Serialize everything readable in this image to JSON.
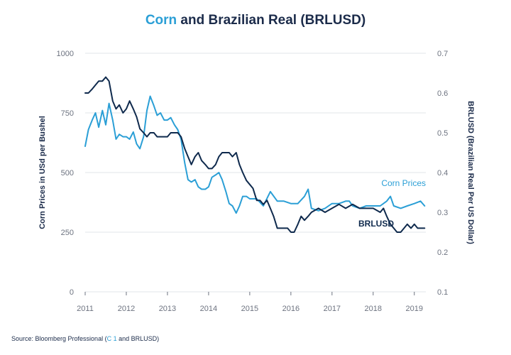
{
  "title": {
    "accent": "Corn",
    "rest": " and Brazilian Real (BRLUSD)"
  },
  "source": {
    "prefix": "Source: Bloomberg Professional (",
    "accent": "C 1",
    "suffix": " and BRLUSD)"
  },
  "colors": {
    "corn": "#2b9fd6",
    "brl": "#0f2a4d",
    "grid": "#e2e4e8",
    "text": "#1b2b4a",
    "tick": "#6d7380"
  },
  "chart_data": {
    "type": "line",
    "title": "Corn and Brazilian Real (BRLUSD)",
    "xlabel": "",
    "ylabel_left": "Corn Prices in USd per Bushel",
    "ylabel_right": "BRLUSD (Brazilian Real Per US Dollar)",
    "x_ticks": [
      "2011",
      "2012",
      "2013",
      "2014",
      "2015",
      "2016",
      "2017",
      "2018",
      "2019"
    ],
    "y_left_ticks": [
      "0",
      "250",
      "500",
      "750",
      "1000"
    ],
    "y_right_ticks": [
      "0.1",
      "0.2",
      "0.3",
      "0.4",
      "0.5",
      "0.6",
      "0.7"
    ],
    "xlim": [
      2011.0,
      2019.28
    ],
    "ylim_left": [
      0,
      1000
    ],
    "ylim_right": [
      0.1,
      0.7
    ],
    "grid": true,
    "series": [
      {
        "name": "Corn Prices",
        "axis": "left",
        "x": [
          2011.0,
          2011.08,
          2011.17,
          2011.25,
          2011.33,
          2011.42,
          2011.5,
          2011.58,
          2011.67,
          2011.75,
          2011.83,
          2011.92,
          2012.0,
          2012.08,
          2012.17,
          2012.25,
          2012.33,
          2012.42,
          2012.5,
          2012.58,
          2012.67,
          2012.75,
          2012.83,
          2012.92,
          2013.0,
          2013.08,
          2013.17,
          2013.25,
          2013.33,
          2013.42,
          2013.5,
          2013.58,
          2013.67,
          2013.75,
          2013.83,
          2013.92,
          2014.0,
          2014.08,
          2014.17,
          2014.25,
          2014.33,
          2014.42,
          2014.5,
          2014.58,
          2014.67,
          2014.75,
          2014.83,
          2014.92,
          2015.0,
          2015.17,
          2015.33,
          2015.5,
          2015.67,
          2015.83,
          2016.0,
          2016.17,
          2016.33,
          2016.42,
          2016.5,
          2016.67,
          2016.83,
          2017.0,
          2017.17,
          2017.33,
          2017.42,
          2017.5,
          2017.67,
          2017.83,
          2018.0,
          2018.17,
          2018.33,
          2018.42,
          2018.5,
          2018.67,
          2018.83,
          2019.0,
          2019.15,
          2019.25
        ],
        "values": [
          610,
          680,
          720,
          750,
          690,
          760,
          700,
          790,
          720,
          640,
          660,
          650,
          650,
          640,
          670,
          620,
          600,
          650,
          760,
          820,
          780,
          740,
          750,
          720,
          720,
          730,
          700,
          680,
          640,
          540,
          470,
          460,
          470,
          440,
          430,
          430,
          440,
          480,
          490,
          500,
          470,
          420,
          370,
          360,
          330,
          360,
          400,
          400,
          390,
          390,
          360,
          420,
          380,
          380,
          370,
          370,
          400,
          430,
          350,
          340,
          350,
          370,
          370,
          380,
          380,
          360,
          350,
          360,
          360,
          360,
          380,
          400,
          360,
          350,
          360,
          370,
          380,
          360
        ]
      },
      {
        "name": "BRLUSD",
        "axis": "right",
        "x": [
          2011.0,
          2011.08,
          2011.17,
          2011.25,
          2011.33,
          2011.42,
          2011.5,
          2011.58,
          2011.67,
          2011.75,
          2011.83,
          2011.92,
          2012.0,
          2012.08,
          2012.17,
          2012.25,
          2012.33,
          2012.42,
          2012.5,
          2012.58,
          2012.67,
          2012.75,
          2012.83,
          2012.92,
          2013.0,
          2013.08,
          2013.17,
          2013.25,
          2013.33,
          2013.42,
          2013.5,
          2013.58,
          2013.67,
          2013.75,
          2013.83,
          2013.92,
          2014.0,
          2014.08,
          2014.17,
          2014.25,
          2014.33,
          2014.42,
          2014.5,
          2014.58,
          2014.67,
          2014.75,
          2014.83,
          2014.92,
          2015.0,
          2015.08,
          2015.17,
          2015.25,
          2015.33,
          2015.42,
          2015.5,
          2015.58,
          2015.67,
          2015.75,
          2015.83,
          2015.92,
          2016.0,
          2016.08,
          2016.17,
          2016.25,
          2016.33,
          2016.42,
          2016.5,
          2016.67,
          2016.83,
          2017.0,
          2017.17,
          2017.33,
          2017.5,
          2017.67,
          2017.83,
          2018.0,
          2018.17,
          2018.25,
          2018.33,
          2018.42,
          2018.5,
          2018.58,
          2018.67,
          2018.75,
          2018.83,
          2018.92,
          2019.0,
          2019.08,
          2019.17,
          2019.25
        ],
        "values": [
          0.6,
          0.6,
          0.61,
          0.62,
          0.63,
          0.63,
          0.64,
          0.63,
          0.58,
          0.56,
          0.57,
          0.55,
          0.56,
          0.58,
          0.56,
          0.54,
          0.51,
          0.5,
          0.49,
          0.5,
          0.5,
          0.49,
          0.49,
          0.49,
          0.49,
          0.5,
          0.5,
          0.5,
          0.49,
          0.46,
          0.44,
          0.42,
          0.44,
          0.45,
          0.43,
          0.42,
          0.41,
          0.41,
          0.42,
          0.44,
          0.45,
          0.45,
          0.45,
          0.44,
          0.45,
          0.42,
          0.4,
          0.38,
          0.37,
          0.36,
          0.33,
          0.33,
          0.32,
          0.33,
          0.31,
          0.29,
          0.26,
          0.26,
          0.26,
          0.26,
          0.25,
          0.25,
          0.27,
          0.29,
          0.28,
          0.29,
          0.3,
          0.31,
          0.3,
          0.31,
          0.32,
          0.31,
          0.32,
          0.31,
          0.31,
          0.31,
          0.3,
          0.31,
          0.29,
          0.27,
          0.26,
          0.25,
          0.25,
          0.26,
          0.27,
          0.26,
          0.27,
          0.26,
          0.26,
          0.26
        ]
      }
    ],
    "annotations": [
      {
        "text": "Corn Prices",
        "series": "Corn Prices"
      },
      {
        "text": "BRLUSD",
        "series": "BRLUSD"
      }
    ]
  }
}
